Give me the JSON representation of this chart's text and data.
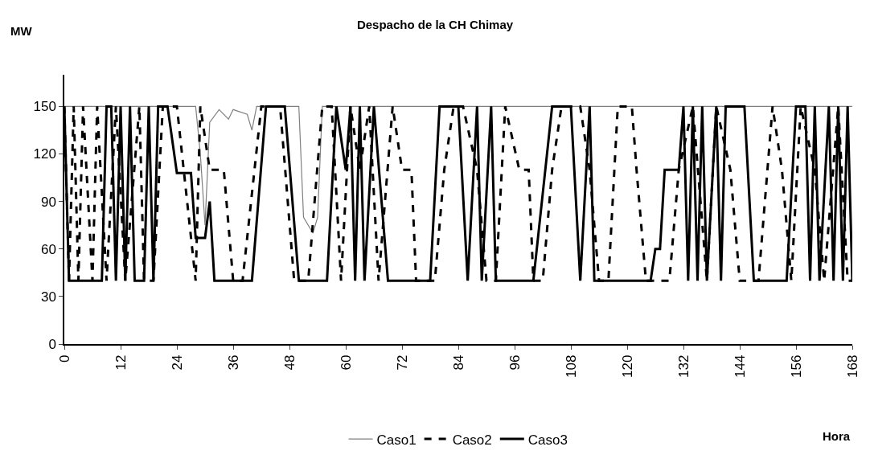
{
  "chart_data": {
    "type": "line",
    "title": "Despacho de la CH Chimay",
    "ylabel": "MW",
    "xlabel": "Hora",
    "xlim": [
      0,
      168
    ],
    "xticks": [
      0,
      12,
      24,
      36,
      48,
      60,
      72,
      84,
      96,
      108,
      120,
      132,
      144,
      156,
      168
    ],
    "ylim": [
      0,
      170
    ],
    "yticks": [
      0,
      30,
      60,
      90,
      120,
      150
    ],
    "grid": false,
    "legend": "bottom",
    "marker": "none",
    "series": [
      {
        "name": "Caso1",
        "color": "#808080",
        "line_style": "solid",
        "x": [
          0,
          28,
          29,
          30,
          31,
          33,
          35,
          36,
          39,
          40,
          41,
          50,
          51,
          53,
          54,
          55,
          168
        ],
        "values": [
          150,
          150,
          120,
          75,
          140,
          148,
          142,
          148,
          145,
          135,
          150,
          150,
          80,
          70,
          80,
          150,
          150
        ]
      },
      {
        "name": "Caso2",
        "color": "#000000",
        "line_style": "dashed",
        "x": [
          0,
          1,
          2,
          3,
          4,
          6,
          7,
          9,
          11,
          13,
          16,
          17,
          19,
          21,
          24,
          28,
          29,
          31,
          34,
          36,
          38,
          42,
          46,
          49,
          52,
          55,
          57,
          59,
          61,
          63,
          65,
          67,
          70,
          72,
          74,
          75,
          79,
          81,
          83,
          85,
          88,
          90,
          92,
          94,
          97,
          99,
          100,
          102,
          104,
          106,
          110,
          112,
          114,
          116,
          118,
          121,
          122,
          124,
          129,
          131,
          134,
          137,
          139,
          142,
          144,
          148,
          151,
          153,
          155,
          157,
          160,
          162,
          165,
          167,
          168
        ],
        "values": [
          150,
          40,
          150,
          40,
          150,
          40,
          150,
          40,
          150,
          40,
          150,
          40,
          40,
          150,
          150,
          40,
          150,
          110,
          110,
          40,
          40,
          150,
          150,
          40,
          40,
          150,
          150,
          40,
          150,
          110,
          150,
          40,
          150,
          110,
          110,
          40,
          40,
          110,
          150,
          150,
          110,
          40,
          40,
          150,
          110,
          110,
          40,
          40,
          110,
          150,
          150,
          110,
          40,
          40,
          150,
          150,
          110,
          40,
          40,
          110,
          150,
          40,
          150,
          110,
          40,
          40,
          150,
          110,
          40,
          150,
          110,
          40,
          150,
          40,
          40
        ]
      },
      {
        "name": "Caso3",
        "color": "#000000",
        "line_style": "solid",
        "x": [
          0,
          1,
          8,
          9,
          10,
          11,
          12,
          13,
          14,
          15,
          17,
          18,
          19,
          20,
          22,
          24,
          27,
          28,
          30,
          31,
          32,
          40,
          43,
          47,
          50,
          56,
          58,
          60,
          61,
          62,
          63,
          64,
          66,
          69,
          78,
          80,
          84,
          86,
          88,
          89,
          91,
          92,
          100,
          104,
          108,
          110,
          112,
          113,
          125,
          126,
          127,
          128,
          131,
          132,
          133,
          134,
          135,
          136,
          137,
          139,
          140,
          141,
          145,
          147,
          154,
          156,
          158,
          159,
          160,
          161,
          163,
          164,
          165,
          166,
          167,
          168
        ],
        "values": [
          150,
          40,
          40,
          150,
          150,
          40,
          150,
          40,
          150,
          40,
          40,
          150,
          40,
          150,
          150,
          108,
          108,
          67,
          67,
          90,
          40,
          40,
          150,
          150,
          40,
          40,
          150,
          110,
          150,
          40,
          150,
          40,
          150,
          40,
          40,
          150,
          150,
          40,
          150,
          40,
          150,
          40,
          40,
          150,
          150,
          40,
          150,
          40,
          40,
          60,
          60,
          110,
          110,
          150,
          40,
          150,
          40,
          150,
          40,
          150,
          40,
          150,
          150,
          40,
          40,
          150,
          150,
          40,
          150,
          40,
          150,
          40,
          150,
          40,
          150,
          40
        ]
      }
    ]
  }
}
